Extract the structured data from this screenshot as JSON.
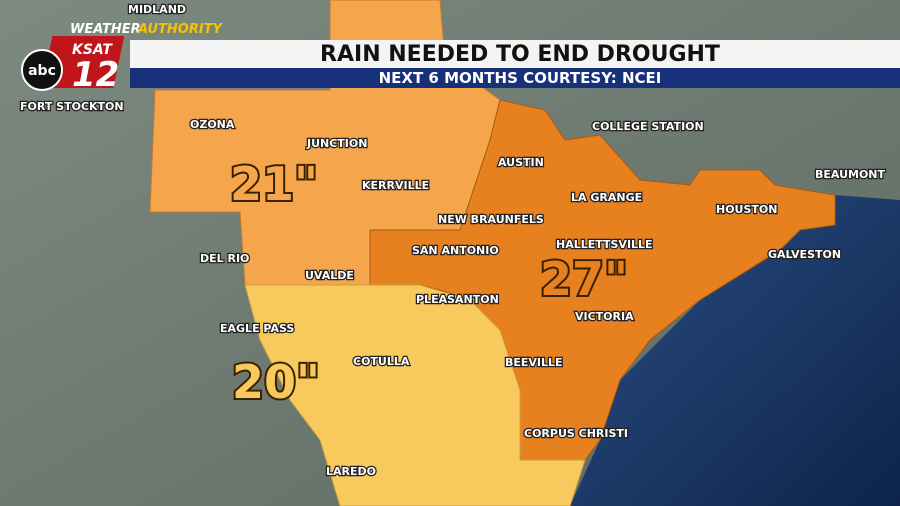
{
  "header": {
    "title": "RAIN NEEDED TO END DROUGHT",
    "subtitle": "NEXT 6 MONTHS COURTESY: NCEI"
  },
  "branding": {
    "tagline_1": "WEATHER",
    "tagline_2": "AUTHORITY",
    "station": "KSAT",
    "channel": "12",
    "network": "abc"
  },
  "regions": [
    {
      "label": "21\""
    },
    {
      "label": "27\""
    },
    {
      "label": "20\""
    }
  ],
  "cities": [
    "MIDLAND",
    "FORT STOCKTON",
    "OZONA",
    "JUNCTION",
    "KERRVILLE",
    "AUSTIN",
    "COLLEGE STATION",
    "LA GRANGE",
    "NEW BRAUNFELS",
    "SAN ANTONIO",
    "HOUSTON",
    "BEAUMONT",
    "HALLETTSVILLE",
    "DEL RIO",
    "UVALDE",
    "GALVESTON",
    "PLEASANTON",
    "EAGLE PASS",
    "VICTORIA",
    "COTULLA",
    "BEEVILLE",
    "CORPUS CHRISTI",
    "LAREDO"
  ]
}
